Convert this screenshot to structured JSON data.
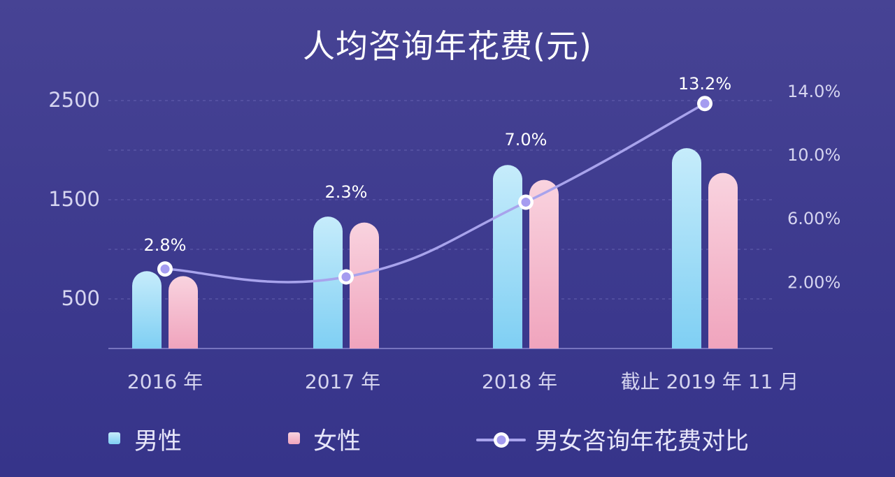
{
  "chart_data": {
    "type": "bar",
    "title": "人均咨询年花费(元)",
    "categories": [
      "2016 年",
      "2017 年",
      "2018 年",
      "截止 2019 年 11 月"
    ],
    "series": [
      {
        "name": "男性",
        "kind": "bar",
        "axis": "left",
        "values": [
          780,
          1330,
          1850,
          2020
        ]
      },
      {
        "name": "女性",
        "kind": "bar",
        "axis": "left",
        "values": [
          730,
          1270,
          1700,
          1770
        ]
      },
      {
        "name": "男女咨询年花费对比",
        "kind": "line",
        "axis": "right",
        "values": [
          2.8,
          2.3,
          7.0,
          13.2
        ],
        "labels": [
          "2.8%",
          "2.3%",
          "7.0%",
          "13.2%"
        ]
      }
    ],
    "y_left_ticks": [
      "500",
      "1500",
      "2500"
    ],
    "y_left_tick_values": [
      500,
      1500,
      2500
    ],
    "ylim_left": [
      0,
      2500
    ],
    "y_right_ticks": [
      "2.00%",
      "6.00%",
      "10.0%",
      "14.0%"
    ],
    "y_right_tick_values": [
      2,
      6,
      10,
      14
    ],
    "ylim_right": [
      -2.2,
      14
    ],
    "grid": true,
    "legend_position": "bottom",
    "colors": {
      "male_top": "#c6ecfb",
      "male_bottom": "#7fcff3",
      "female_top": "#f9d3df",
      "female_bottom": "#f0a4bd",
      "line": "#a8a3ec",
      "marker_fill": "#a59cf0",
      "marker_ring": "#ffffff",
      "grid": "#6561b0",
      "axis": "#8b88d0"
    }
  }
}
